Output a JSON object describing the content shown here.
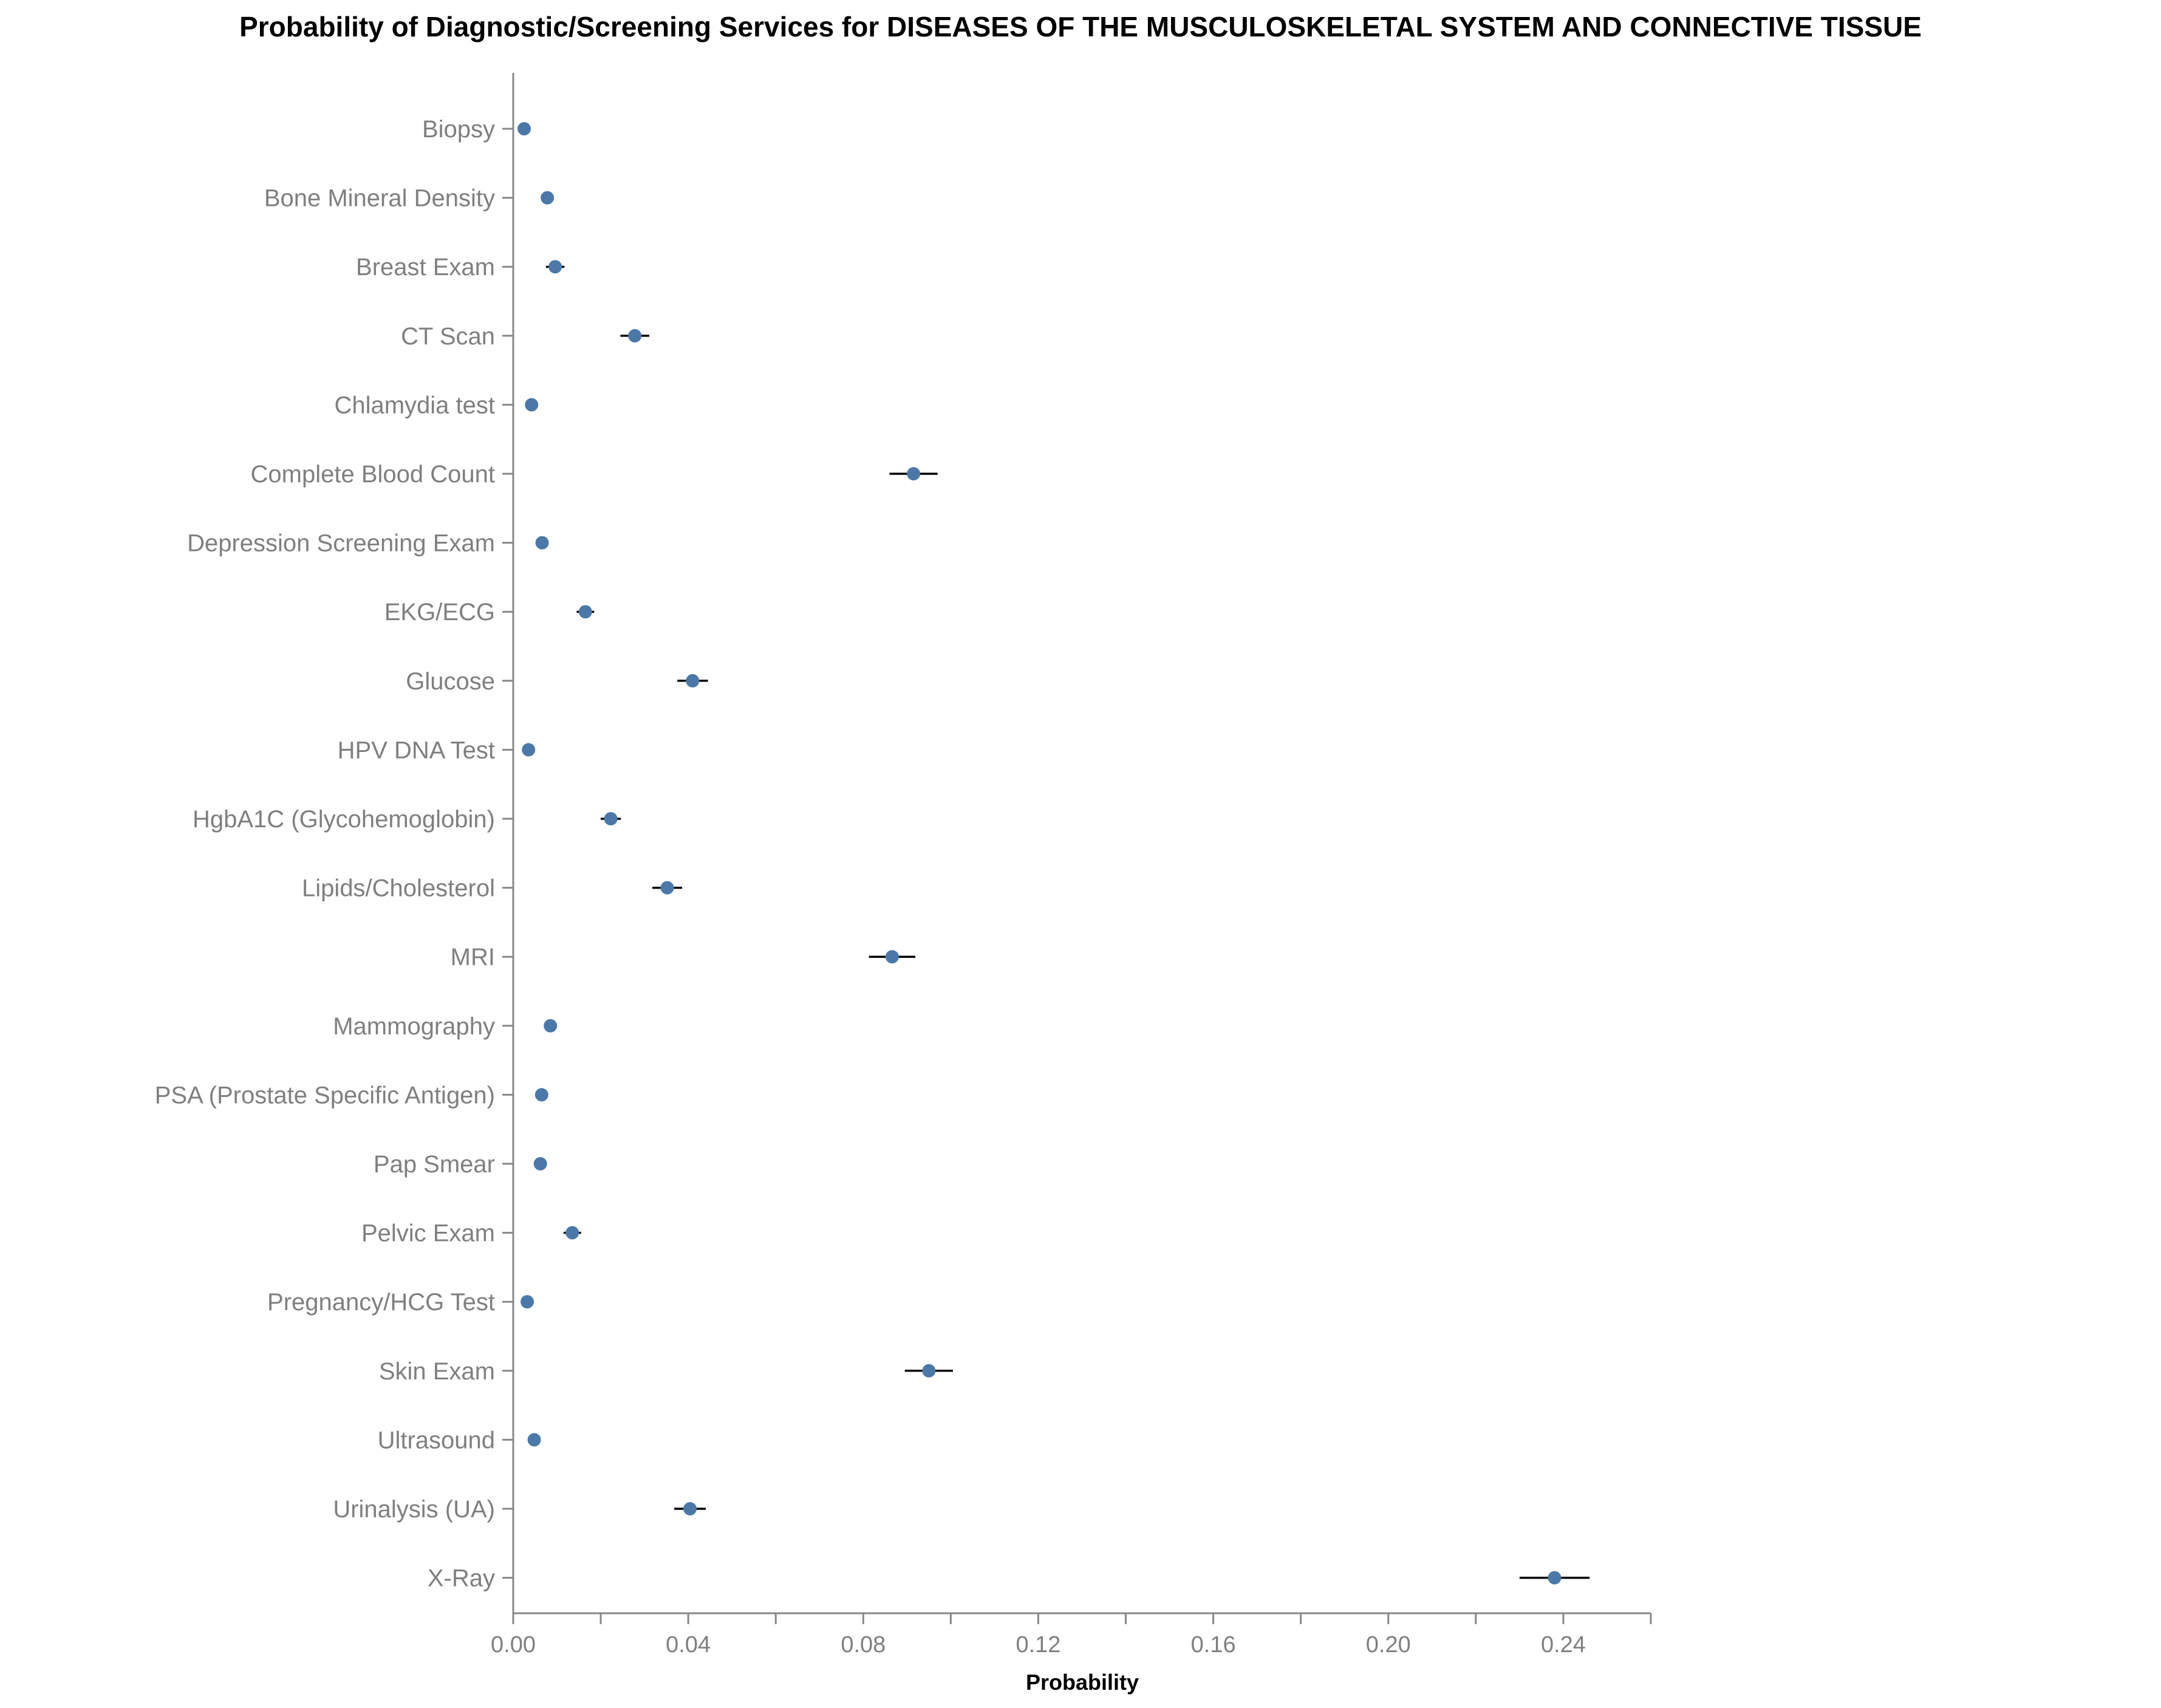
{
  "chart_data": {
    "type": "scatter",
    "title": "Probability of Diagnostic/Screening Services for DISEASES OF THE MUSCULOSKELETAL SYSTEM AND CONNECTIVE TISSUE",
    "xlabel": "Probability",
    "ylabel": "",
    "xlim": [
      0,
      0.26
    ],
    "x_ticks": [
      0.0,
      0.04,
      0.08,
      0.12,
      0.16,
      0.2,
      0.24
    ],
    "x_tick_labels": [
      "0.00",
      "0.04",
      "0.08",
      "0.12",
      "0.16",
      "0.20",
      "0.24"
    ],
    "grid": false,
    "point_color": "#4c78a8",
    "errorbar_color": "#000000",
    "categories": [
      "Biopsy",
      "Bone Mineral Density",
      "Breast Exam",
      "CT Scan",
      "Chlamydia test",
      "Complete Blood Count",
      "Depression Screening Exam",
      "EKG/ECG",
      "Glucose",
      "HPV DNA Test",
      "HgbA1C (Glycohemoglobin)",
      "Lipids/Cholesterol",
      "MRI",
      "Mammography",
      "PSA (Prostate Specific Antigen)",
      "Pap Smear",
      "Pelvic Exam",
      "Pregnancy/HCG Test",
      "Skin Exam",
      "Ultrasound",
      "Urinalysis (UA)",
      "X-Ray"
    ],
    "values": [
      0.0025,
      0.0078,
      0.0096,
      0.0278,
      0.0042,
      0.0915,
      0.0066,
      0.0165,
      0.041,
      0.0035,
      0.0223,
      0.0352,
      0.0866,
      0.0085,
      0.0065,
      0.0062,
      0.0135,
      0.0032,
      0.095,
      0.0048,
      0.0404,
      0.238
    ],
    "lower": [
      0.0015,
      0.0065,
      0.0075,
      0.0245,
      0.0032,
      0.086,
      0.0055,
      0.0145,
      0.0375,
      0.0026,
      0.02,
      0.0318,
      0.0813,
      0.0074,
      0.0056,
      0.0053,
      0.0115,
      0.0024,
      0.0895,
      0.0038,
      0.0368,
      0.23
    ],
    "upper": [
      0.0035,
      0.0091,
      0.0117,
      0.0311,
      0.0052,
      0.097,
      0.0077,
      0.0185,
      0.0445,
      0.0044,
      0.0246,
      0.0386,
      0.0919,
      0.0096,
      0.0074,
      0.0071,
      0.0155,
      0.004,
      0.1005,
      0.0058,
      0.044,
      0.246
    ]
  }
}
